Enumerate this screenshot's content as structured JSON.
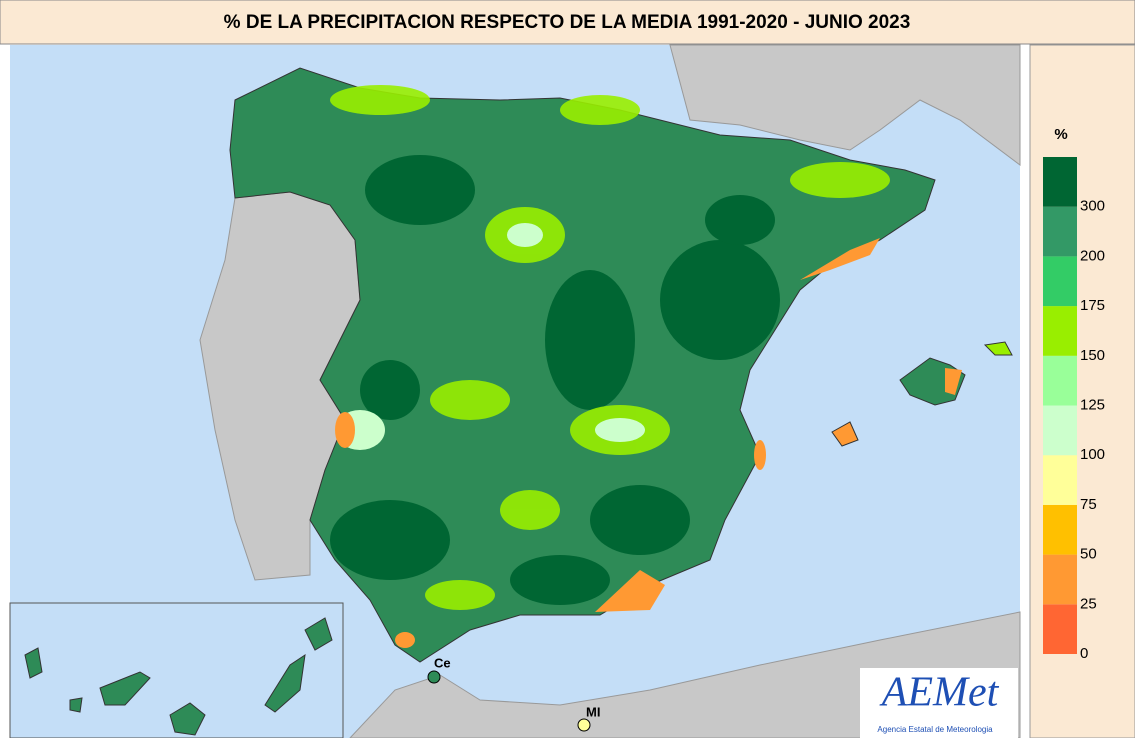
{
  "title": "% DE LA PRECIPITACION RESPECTO DE LA MEDIA  1991-2020  - JUNIO 2023",
  "legend": {
    "unit": "%",
    "ticks": [
      0,
      25,
      50,
      75,
      100,
      125,
      150,
      175,
      200,
      300
    ],
    "colors": [
      "#ff6633",
      "#ff9933",
      "#ffc000",
      "#ffff99",
      "#ccffcc",
      "#99ff99",
      "#99ee00",
      "#33cc66",
      "#339966",
      "#006633"
    ]
  },
  "places": [
    {
      "label": "Ce"
    },
    {
      "label": "MI"
    }
  ],
  "logo": {
    "name": "AEMet",
    "subtitle": "Agencia Estatal de Meteorologia"
  }
}
